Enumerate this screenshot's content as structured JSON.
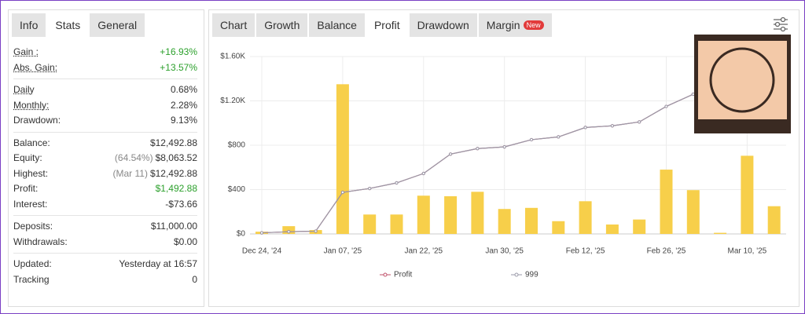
{
  "stats": {
    "tabs": [
      "Info",
      "Stats",
      "General"
    ],
    "active_tab": 1,
    "sections": [
      [
        {
          "label": "Gain :",
          "value": "+16.93%",
          "color": "#2ca02c",
          "underline": true
        },
        {
          "label": "Abs. Gain:",
          "value": "+13.57%",
          "color": "#2ca02c",
          "underline": true
        }
      ],
      [
        {
          "label": "Daily",
          "value": "0.68%",
          "underline": true
        },
        {
          "label": "Monthly:",
          "value": "2.28%",
          "underline": true
        },
        {
          "label": "Drawdown:",
          "value": "9.13%"
        }
      ],
      [
        {
          "label": "Balance:",
          "value": "$12,492.88"
        },
        {
          "label": "Equity:",
          "note": "(64.54%)",
          "value": "$8,063.52"
        },
        {
          "label": "Highest:",
          "note": "(Mar 11)",
          "value": "$12,492.88"
        },
        {
          "label": "Profit:",
          "value": "$1,492.88",
          "color": "#2ca02c"
        },
        {
          "label": "Interest:",
          "value": "-$73.66"
        }
      ],
      [
        {
          "label": "Deposits:",
          "value": "$11,000.00"
        },
        {
          "label": "Withdrawals:",
          "value": "$0.00"
        }
      ],
      [
        {
          "label": "Updated:",
          "value": "Yesterday at 16:57"
        },
        {
          "label": "Tracking",
          "value": "0"
        }
      ]
    ]
  },
  "chart_tabs": {
    "tabs": [
      "Chart",
      "Growth",
      "Balance",
      "Profit",
      "Drawdown",
      "Margin"
    ],
    "active_tab": 3,
    "badge": "New"
  },
  "chart_data": {
    "type": "bar",
    "categories": [
      "Dec 24, '24",
      null,
      null,
      "Jan 07, '25",
      null,
      null,
      "Jan 22, '25",
      null,
      null,
      "Jan 30, '25",
      null,
      null,
      "Feb 12, '25",
      null,
      null,
      "Feb 26, '25",
      null,
      null,
      "Mar 10, '25",
      null
    ],
    "bar_values": [
      20,
      70,
      35,
      1350,
      175,
      175,
      345,
      340,
      380,
      225,
      235,
      115,
      295,
      85,
      130,
      580,
      395,
      10,
      705,
      250
    ],
    "bar_color": "#f7cf4a",
    "series": [
      {
        "name": "Profit",
        "color": "#c0506a",
        "values": [
          10,
          20,
          25,
          375,
          410,
          460,
          545,
          720,
          770,
          785,
          850,
          875,
          960,
          975,
          1010,
          1150,
          1260,
          null,
          null,
          null
        ]
      },
      {
        "name": "999",
        "color": "#9a9aa8",
        "values": [
          10,
          20,
          25,
          375,
          410,
          460,
          545,
          720,
          770,
          785,
          850,
          875,
          960,
          975,
          1010,
          1150,
          1260,
          null,
          null,
          null
        ]
      }
    ],
    "ylim": [
      0,
      1600
    ],
    "yticks": [
      {
        "value": 0,
        "label": "$0"
      },
      {
        "value": 400,
        "label": "$400"
      },
      {
        "value": 800,
        "label": "$800"
      },
      {
        "value": 1200,
        "label": "$1.20K"
      },
      {
        "value": 1600,
        "label": "$1.60K"
      }
    ],
    "grid": true
  }
}
